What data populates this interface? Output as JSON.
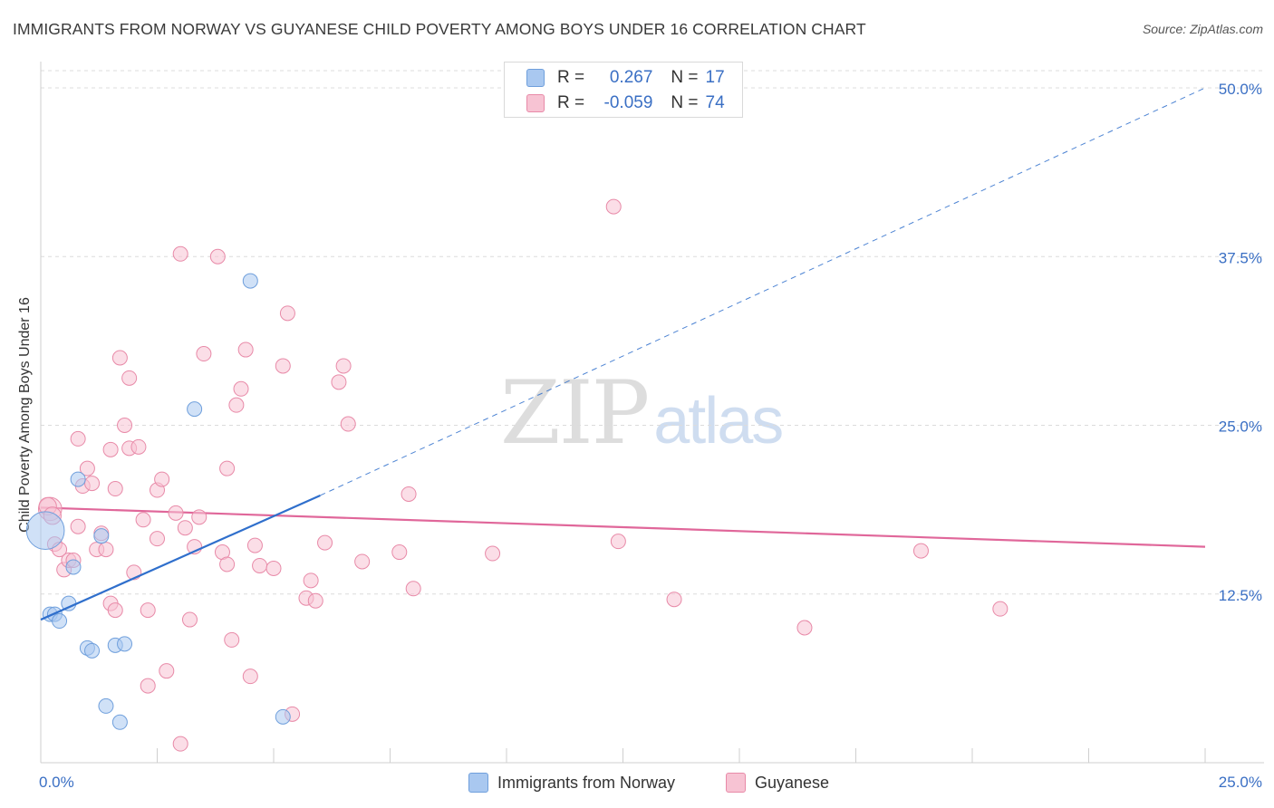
{
  "header": {
    "title": "IMMIGRANTS FROM NORWAY VS GUYANESE CHILD POVERTY AMONG BOYS UNDER 16 CORRELATION CHART",
    "source": "Source: ZipAtlas.com"
  },
  "watermark": {
    "zip": "ZIP",
    "atlas": "atlas"
  },
  "legend": {
    "rows": [
      {
        "r_label": "R =",
        "r_value": "0.267",
        "n_label": "N =",
        "n_value": "17",
        "color": "#a9c8f0",
        "border": "#6f9fdc"
      },
      {
        "r_label": "R =",
        "r_value": "-0.059",
        "n_label": "N =",
        "n_value": "74",
        "color": "#f7c3d3",
        "border": "#e88aa8"
      }
    ]
  },
  "bottom_legend": {
    "items": [
      {
        "label": "Immigrants from Norway",
        "color": "#a9c8f0",
        "border": "#6f9fdc"
      },
      {
        "label": "Guyanese",
        "color": "#f7c3d3",
        "border": "#e88aa8"
      }
    ]
  },
  "chart_data": {
    "type": "scatter",
    "title": "IMMIGRANTS FROM NORWAY VS GUYANESE CHILD POVERTY AMONG BOYS UNDER 16 CORRELATION CHART",
    "xlabel": "",
    "ylabel": "Child Poverty Among Boys Under 16",
    "xlim": [
      0,
      25
    ],
    "ylim": [
      0,
      50
    ],
    "x_tick_labels": [
      {
        "value": 0,
        "label": "0.0%"
      },
      {
        "value": 25,
        "label": "25.0%"
      }
    ],
    "y_tick_labels": [
      {
        "value": 12.5,
        "label": "12.5%"
      },
      {
        "value": 25,
        "label": "25.0%"
      },
      {
        "value": 37.5,
        "label": "37.5%"
      },
      {
        "value": 50,
        "label": "50.0%"
      }
    ],
    "x_minor_ticks": [
      2.5,
      5,
      7.5,
      10,
      12.5,
      15,
      17.5,
      20,
      22.5,
      25
    ],
    "grid": true,
    "series": [
      {
        "name": "Immigrants from Norway",
        "color": "#a9c8f0",
        "stroke": "#6f9fdc",
        "points": [
          [
            0.1,
            17.2
          ],
          [
            0.2,
            11.0
          ],
          [
            0.3,
            11.0
          ],
          [
            0.4,
            10.5
          ],
          [
            0.6,
            11.8
          ],
          [
            0.7,
            14.5
          ],
          [
            0.8,
            21.0
          ],
          [
            1.0,
            8.5
          ],
          [
            1.1,
            8.3
          ],
          [
            1.3,
            16.8
          ],
          [
            1.4,
            4.2
          ],
          [
            1.6,
            8.7
          ],
          [
            1.7,
            3.0
          ],
          [
            1.8,
            8.8
          ],
          [
            3.3,
            26.2
          ],
          [
            4.5,
            35.7
          ],
          [
            5.2,
            3.4
          ]
        ],
        "sizes": [
          26,
          10,
          10,
          10,
          10,
          10,
          10,
          10,
          10,
          10,
          10,
          10,
          10,
          10,
          10,
          10,
          10
        ],
        "trend": {
          "x0": 0.0,
          "y0": 10.6,
          "x1": 6.0,
          "y1": 19.8,
          "dash_x1": 25.0,
          "dash_y1": 50.0,
          "color": "#2f6fcc"
        }
      },
      {
        "name": "Guyanese",
        "color": "#f7c3d3",
        "stroke": "#e88aa8",
        "points": [
          [
            0.2,
            18.8
          ],
          [
            0.3,
            16.2
          ],
          [
            0.4,
            15.8
          ],
          [
            0.5,
            14.3
          ],
          [
            0.6,
            15.0
          ],
          [
            0.7,
            15.0
          ],
          [
            0.8,
            17.5
          ],
          [
            0.8,
            24.0
          ],
          [
            0.9,
            20.5
          ],
          [
            1.0,
            21.8
          ],
          [
            1.1,
            20.7
          ],
          [
            1.2,
            15.8
          ],
          [
            1.3,
            17.0
          ],
          [
            1.4,
            15.8
          ],
          [
            1.5,
            23.2
          ],
          [
            1.5,
            11.8
          ],
          [
            1.6,
            11.3
          ],
          [
            1.6,
            20.3
          ],
          [
            1.7,
            30.0
          ],
          [
            1.8,
            25.0
          ],
          [
            1.9,
            23.3
          ],
          [
            1.9,
            28.5
          ],
          [
            2.0,
            14.1
          ],
          [
            2.1,
            23.4
          ],
          [
            2.2,
            18.0
          ],
          [
            2.3,
            5.7
          ],
          [
            2.3,
            11.3
          ],
          [
            2.5,
            20.2
          ],
          [
            2.5,
            16.6
          ],
          [
            2.6,
            21.0
          ],
          [
            2.7,
            6.8
          ],
          [
            2.9,
            18.5
          ],
          [
            3.0,
            37.7
          ],
          [
            3.0,
            1.4
          ],
          [
            3.1,
            17.4
          ],
          [
            3.2,
            10.6
          ],
          [
            3.3,
            16.0
          ],
          [
            3.4,
            18.2
          ],
          [
            3.5,
            30.3
          ],
          [
            3.8,
            37.5
          ],
          [
            3.9,
            15.6
          ],
          [
            4.0,
            21.8
          ],
          [
            4.0,
            14.7
          ],
          [
            4.1,
            9.1
          ],
          [
            4.2,
            26.5
          ],
          [
            4.3,
            27.7
          ],
          [
            4.4,
            30.6
          ],
          [
            4.5,
            6.4
          ],
          [
            4.6,
            16.1
          ],
          [
            4.7,
            14.6
          ],
          [
            5.0,
            14.4
          ],
          [
            5.2,
            29.4
          ],
          [
            5.3,
            33.3
          ],
          [
            5.4,
            3.6
          ],
          [
            5.7,
            12.2
          ],
          [
            5.8,
            13.5
          ],
          [
            5.9,
            12.0
          ],
          [
            6.1,
            16.3
          ],
          [
            6.4,
            28.2
          ],
          [
            6.5,
            29.4
          ],
          [
            6.6,
            25.1
          ],
          [
            6.9,
            14.9
          ],
          [
            7.7,
            15.6
          ],
          [
            7.9,
            19.9
          ],
          [
            8.0,
            12.9
          ],
          [
            9.7,
            15.5
          ],
          [
            12.3,
            41.2
          ],
          [
            12.4,
            16.4
          ],
          [
            13.6,
            12.1
          ],
          [
            16.4,
            10.0
          ],
          [
            18.9,
            15.7
          ],
          [
            20.6,
            11.4
          ],
          [
            0.15,
            19.0
          ],
          [
            0.25,
            18.3
          ]
        ],
        "sizes": [
          16,
          10,
          10,
          10,
          10,
          10,
          10,
          10,
          10,
          10,
          10,
          10,
          10,
          10,
          10,
          10,
          10,
          10,
          10,
          10,
          10,
          10,
          10,
          10,
          10,
          10,
          10,
          10,
          10,
          10,
          10,
          10,
          10,
          10,
          10,
          10,
          10,
          10,
          10,
          10,
          10,
          10,
          10,
          10,
          10,
          10,
          10,
          10,
          10,
          10,
          10,
          10,
          10,
          10,
          10,
          10,
          10,
          10,
          10,
          10,
          10,
          10,
          10,
          10,
          10,
          10,
          10,
          10,
          10,
          10,
          10,
          10,
          12,
          12
        ],
        "trend": {
          "x0": 0.0,
          "y0": 18.9,
          "x1": 25.0,
          "y1": 16.0,
          "color": "#e0679a"
        }
      }
    ]
  }
}
